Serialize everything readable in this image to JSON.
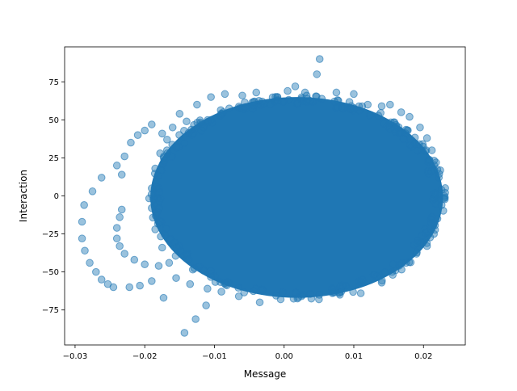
{
  "chart_data": {
    "type": "scatter",
    "title": "",
    "xlabel": "Message",
    "ylabel": "Interaction",
    "xlim": [
      -0.0315,
      0.026
    ],
    "ylim": [
      -98,
      98
    ],
    "xticks": [
      -0.03,
      -0.02,
      -0.01,
      0.0,
      0.01,
      0.02
    ],
    "xtick_labels": [
      "−0.03",
      "−0.02",
      "−0.01",
      "0.00",
      "0.01",
      "0.02"
    ],
    "yticks": [
      -75,
      -50,
      -25,
      0,
      25,
      50,
      75
    ],
    "ytick_labels": [
      "−75",
      "−50",
      "−25",
      "0",
      "25",
      "50",
      "75"
    ],
    "grid": false,
    "legend": "none",
    "marker_color": "#1f77b4",
    "marker_alpha": 0.45,
    "dense_region": {
      "shape": "ellipse",
      "center_x": 0.0018,
      "center_y": -1,
      "radius_x": 0.021,
      "radius_y": 66
    },
    "points": [
      {
        "x": 0.0051,
        "y": 90
      },
      {
        "x": 0.0047,
        "y": 80
      },
      {
        "x": 0.0016,
        "y": 72
      },
      {
        "x": -0.0143,
        "y": -90
      },
      {
        "x": -0.0127,
        "y": -81
      },
      {
        "x": -0.0112,
        "y": -72
      },
      {
        "x": -0.0173,
        "y": -67
      },
      {
        "x": -0.029,
        "y": -17
      },
      {
        "x": -0.029,
        "y": -28
      },
      {
        "x": -0.0286,
        "y": -36
      },
      {
        "x": -0.0287,
        "y": -6
      },
      {
        "x": -0.0279,
        "y": -44
      },
      {
        "x": -0.0275,
        "y": 3
      },
      {
        "x": -0.027,
        "y": -50
      },
      {
        "x": -0.0262,
        "y": 12
      },
      {
        "x": -0.0262,
        "y": -55
      },
      {
        "x": -0.0253,
        "y": -58
      },
      {
        "x": -0.0245,
        "y": -60
      },
      {
        "x": -0.024,
        "y": 20
      },
      {
        "x": -0.024,
        "y": -21
      },
      {
        "x": -0.024,
        "y": -28
      },
      {
        "x": -0.0236,
        "y": -33
      },
      {
        "x": -0.0236,
        "y": -14
      },
      {
        "x": -0.0233,
        "y": 14
      },
      {
        "x": -0.0233,
        "y": -9
      },
      {
        "x": -0.0229,
        "y": -38
      },
      {
        "x": -0.0229,
        "y": 26
      },
      {
        "x": -0.0222,
        "y": -60
      },
      {
        "x": -0.0215,
        "y": -42
      },
      {
        "x": -0.0207,
        "y": -59
      },
      {
        "x": -0.02,
        "y": -45
      },
      {
        "x": -0.019,
        "y": -56
      },
      {
        "x": -0.018,
        "y": -46
      },
      {
        "x": -0.022,
        "y": 35
      },
      {
        "x": -0.021,
        "y": 40
      },
      {
        "x": -0.02,
        "y": 43
      },
      {
        "x": -0.019,
        "y": 47
      },
      {
        "x": -0.0175,
        "y": 41
      },
      {
        "x": -0.016,
        "y": 45
      },
      {
        "x": -0.015,
        "y": 54
      },
      {
        "x": -0.014,
        "y": 49
      },
      {
        "x": -0.0125,
        "y": 60
      },
      {
        "x": -0.0105,
        "y": 65
      },
      {
        "x": -0.0085,
        "y": 67
      },
      {
        "x": -0.006,
        "y": 66
      },
      {
        "x": -0.004,
        "y": 68
      },
      {
        "x": 0.0005,
        "y": 69
      },
      {
        "x": 0.003,
        "y": 68
      },
      {
        "x": 0.0075,
        "y": 68
      },
      {
        "x": 0.01,
        "y": 67
      },
      {
        "x": 0.012,
        "y": 60
      },
      {
        "x": 0.014,
        "y": 59
      },
      {
        "x": 0.0152,
        "y": 60
      },
      {
        "x": 0.0168,
        "y": 55
      },
      {
        "x": 0.018,
        "y": 52
      },
      {
        "x": 0.0195,
        "y": 45
      },
      {
        "x": 0.0205,
        "y": 38
      },
      {
        "x": 0.0212,
        "y": 30
      },
      {
        "x": 0.0218,
        "y": 22
      },
      {
        "x": 0.0222,
        "y": 12
      },
      {
        "x": 0.0226,
        "y": 4
      },
      {
        "x": 0.023,
        "y": 0
      },
      {
        "x": 0.0226,
        "y": -6
      },
      {
        "x": 0.022,
        "y": -15
      },
      {
        "x": 0.0215,
        "y": -25
      },
      {
        "x": 0.0205,
        "y": -33
      },
      {
        "x": 0.019,
        "y": -38
      },
      {
        "x": 0.0175,
        "y": -44
      },
      {
        "x": 0.0155,
        "y": -50
      },
      {
        "x": 0.014,
        "y": -57
      },
      {
        "x": 0.011,
        "y": -64
      },
      {
        "x": 0.008,
        "y": -65
      },
      {
        "x": 0.005,
        "y": -68
      },
      {
        "x": 0.0025,
        "y": -66
      },
      {
        "x": -0.0005,
        "y": -68
      },
      {
        "x": -0.0035,
        "y": -70
      },
      {
        "x": -0.0065,
        "y": -66
      },
      {
        "x": -0.009,
        "y": -63
      },
      {
        "x": -0.011,
        "y": -61
      },
      {
        "x": -0.0135,
        "y": -58
      },
      {
        "x": -0.0155,
        "y": -54
      },
      {
        "x": -0.0165,
        "y": -44
      },
      {
        "x": -0.0175,
        "y": -34
      },
      {
        "x": -0.0185,
        "y": -22
      },
      {
        "x": -0.019,
        "y": -8
      },
      {
        "x": -0.019,
        "y": 5
      },
      {
        "x": -0.0185,
        "y": 18
      },
      {
        "x": -0.0178,
        "y": 28
      },
      {
        "x": -0.0168,
        "y": 37
      }
    ]
  }
}
